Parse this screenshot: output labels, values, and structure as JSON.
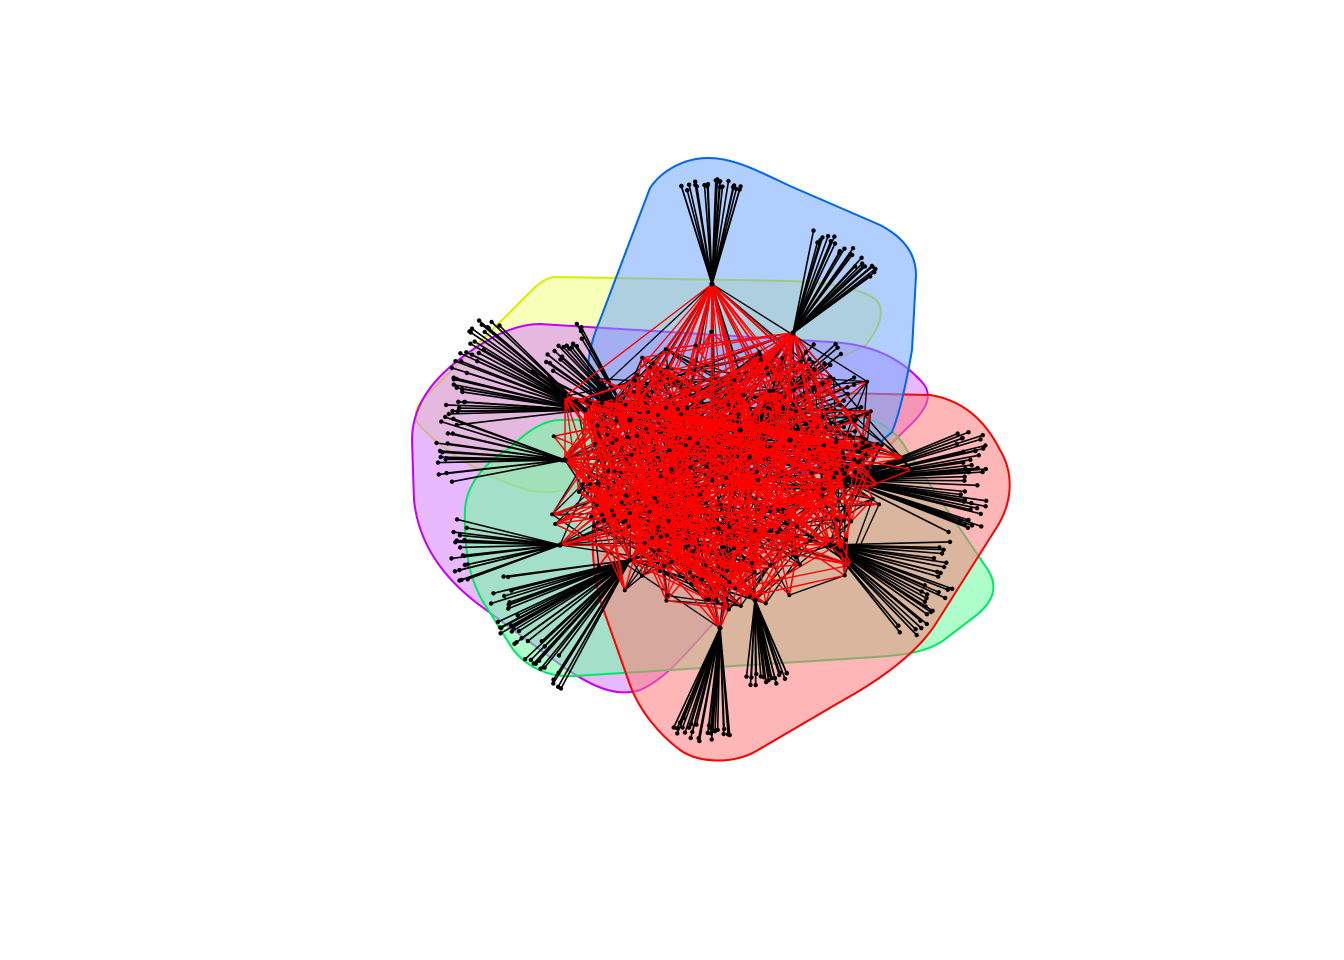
{
  "figure": {
    "type": "network-community-plot",
    "background_color": "#ffffff",
    "node_color": "#000000",
    "intra_edge_color": "#000000",
    "inter_edge_color": "#ff0000"
  },
  "communities": [
    {
      "id": "yellow",
      "border_color": "#d4f000",
      "fill_color": "#f2ff80"
    },
    {
      "id": "magenta",
      "border_color": "#c000ff",
      "fill_color": "#d580ff"
    },
    {
      "id": "green",
      "border_color": "#00e860",
      "fill_color": "#6cff9c"
    },
    {
      "id": "red",
      "border_color": "#ff0000",
      "fill_color": "#ff7a7a"
    },
    {
      "id": "blue",
      "border_color": "#0066ee",
      "fill_color": "#6fa8ff"
    }
  ]
}
